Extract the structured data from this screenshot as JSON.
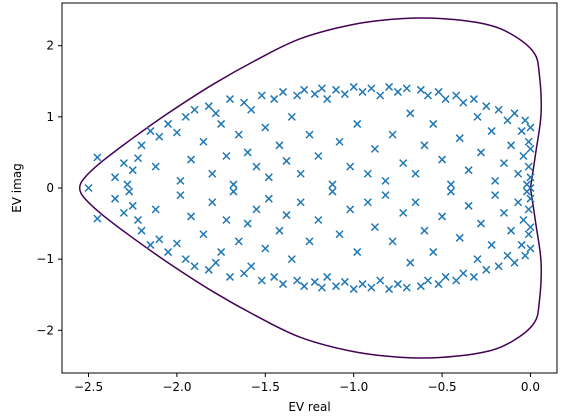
{
  "chart_data": {
    "type": "scatter",
    "title": "",
    "xlabel": "EV real",
    "ylabel": "EV imag",
    "xlim": [
      -2.65,
      0.15
    ],
    "ylim": [
      -2.6,
      2.6
    ],
    "xticks": [
      -2.5,
      -2.0,
      -1.5,
      -1.0,
      -0.5,
      0.0
    ],
    "xtick_labels": [
      "−2.5",
      "−2.0",
      "−1.5",
      "−1.0",
      "−0.5",
      "0.0"
    ],
    "yticks": [
      -2,
      -1,
      0,
      1,
      2
    ],
    "ytick_labels": [
      "−2",
      "−1",
      "0",
      "1",
      "2"
    ],
    "grid": false,
    "legend": null,
    "colors": {
      "markers": "#1f77b4",
      "contour": "#440154"
    },
    "contour": {
      "x": [
        0.0,
        0.03,
        0.06,
        0.05,
        0.02,
        -0.1,
        -0.25,
        -0.5,
        -0.73,
        -1.0,
        -1.3,
        -1.55,
        -1.8,
        -2.05,
        -2.25,
        -2.42,
        -2.52,
        -2.55,
        -2.52,
        -2.42,
        -2.25,
        -2.05,
        -1.8,
        -1.55,
        -1.3,
        -1.0,
        -0.73,
        -0.5,
        -0.25,
        -0.1,
        0.02,
        0.05,
        0.06,
        0.03,
        0.0
      ],
      "y": [
        0.0,
        0.5,
        1.05,
        1.6,
        1.9,
        2.15,
        2.3,
        2.38,
        2.38,
        2.3,
        2.1,
        1.8,
        1.45,
        1.05,
        0.7,
        0.38,
        0.15,
        0.0,
        -0.15,
        -0.38,
        -0.7,
        -1.05,
        -1.45,
        -1.8,
        -2.1,
        -2.3,
        -2.38,
        -2.38,
        -2.3,
        -2.15,
        -1.9,
        -1.6,
        -1.05,
        -0.5,
        0.0
      ]
    },
    "points": [
      [
        -2.5,
        0.0
      ],
      [
        -2.45,
        0.43
      ],
      [
        -2.45,
        -0.43
      ],
      [
        -2.35,
        0.15
      ],
      [
        -2.35,
        -0.15
      ],
      [
        -2.3,
        0.35
      ],
      [
        -2.3,
        -0.35
      ],
      [
        -2.28,
        0.05
      ],
      [
        -2.27,
        -0.05
      ],
      [
        -2.25,
        0.25
      ],
      [
        -2.25,
        -0.25
      ],
      [
        -2.22,
        0.42
      ],
      [
        -2.22,
        -0.45
      ],
      [
        -2.2,
        0.6
      ],
      [
        -2.2,
        -0.6
      ],
      [
        -2.15,
        0.8
      ],
      [
        -2.15,
        -0.8
      ],
      [
        -2.12,
        0.3
      ],
      [
        -2.12,
        -0.3
      ],
      [
        -2.1,
        0.72
      ],
      [
        -2.1,
        -0.72
      ],
      [
        -2.05,
        0.9
      ],
      [
        -2.05,
        -0.9
      ],
      [
        -2.0,
        0.78
      ],
      [
        -2.0,
        -0.78
      ],
      [
        -1.98,
        0.1
      ],
      [
        -1.98,
        -0.1
      ],
      [
        -1.95,
        1.0
      ],
      [
        -1.95,
        -1.0
      ],
      [
        -1.92,
        0.4
      ],
      [
        -1.92,
        -0.4
      ],
      [
        -1.9,
        1.1
      ],
      [
        -1.9,
        -1.1
      ],
      [
        -1.85,
        0.65
      ],
      [
        -1.85,
        -0.65
      ],
      [
        -1.82,
        1.15
      ],
      [
        -1.82,
        -1.15
      ],
      [
        -1.8,
        0.2
      ],
      [
        -1.8,
        -0.2
      ],
      [
        -1.78,
        1.05
      ],
      [
        -1.78,
        -1.05
      ],
      [
        -1.75,
        0.9
      ],
      [
        -1.75,
        -0.9
      ],
      [
        -1.72,
        0.45
      ],
      [
        -1.72,
        -0.45
      ],
      [
        -1.7,
        1.25
      ],
      [
        -1.7,
        -1.25
      ],
      [
        -1.68,
        0.05
      ],
      [
        -1.68,
        -0.05
      ],
      [
        -1.65,
        0.75
      ],
      [
        -1.65,
        -0.75
      ],
      [
        -1.62,
        1.2
      ],
      [
        -1.62,
        -1.2
      ],
      [
        -1.6,
        0.5
      ],
      [
        -1.6,
        -0.5
      ],
      [
        -1.58,
        1.1
      ],
      [
        -1.58,
        -1.1
      ],
      [
        -1.55,
        0.3
      ],
      [
        -1.55,
        -0.3
      ],
      [
        -1.52,
        1.3
      ],
      [
        -1.52,
        -1.3
      ],
      [
        -1.5,
        0.85
      ],
      [
        -1.5,
        -0.85
      ],
      [
        -1.48,
        0.15
      ],
      [
        -1.48,
        -0.15
      ],
      [
        -1.45,
        1.25
      ],
      [
        -1.45,
        -1.25
      ],
      [
        -1.42,
        0.6
      ],
      [
        -1.42,
        -0.6
      ],
      [
        -1.4,
        1.35
      ],
      [
        -1.4,
        -1.35
      ],
      [
        -1.38,
        0.38
      ],
      [
        -1.38,
        -0.38
      ],
      [
        -1.35,
        1.0
      ],
      [
        -1.35,
        -1.0
      ],
      [
        -1.32,
        1.3
      ],
      [
        -1.32,
        -1.3
      ],
      [
        -1.3,
        0.2
      ],
      [
        -1.3,
        -0.2
      ],
      [
        -1.28,
        1.38
      ],
      [
        -1.28,
        -1.38
      ],
      [
        -1.25,
        0.75
      ],
      [
        -1.25,
        -0.75
      ],
      [
        -1.22,
        1.32
      ],
      [
        -1.22,
        -1.32
      ],
      [
        -1.2,
        0.45
      ],
      [
        -1.2,
        -0.45
      ],
      [
        -1.18,
        1.4
      ],
      [
        -1.18,
        -1.4
      ],
      [
        -1.15,
        1.25
      ],
      [
        -1.15,
        -1.25
      ],
      [
        -1.12,
        0.05
      ],
      [
        -1.12,
        -0.05
      ],
      [
        -1.1,
        1.38
      ],
      [
        -1.1,
        -1.38
      ],
      [
        -1.08,
        0.65
      ],
      [
        -1.08,
        -0.65
      ],
      [
        -1.05,
        1.32
      ],
      [
        -1.05,
        -1.32
      ],
      [
        -1.02,
        0.3
      ],
      [
        -1.02,
        -0.3
      ],
      [
        -1.0,
        1.42
      ],
      [
        -1.0,
        -1.42
      ],
      [
        -0.98,
        0.9
      ],
      [
        -0.98,
        -0.9
      ],
      [
        -0.95,
        1.35
      ],
      [
        -0.95,
        -1.35
      ],
      [
        -0.92,
        0.2
      ],
      [
        -0.92,
        -0.2
      ],
      [
        -0.9,
        1.4
      ],
      [
        -0.9,
        -1.4
      ],
      [
        -0.88,
        0.55
      ],
      [
        -0.88,
        -0.55
      ],
      [
        -0.85,
        1.3
      ],
      [
        -0.85,
        -1.3
      ],
      [
        -0.82,
        0.1
      ],
      [
        -0.82,
        -0.1
      ],
      [
        -0.8,
        1.42
      ],
      [
        -0.8,
        -1.42
      ],
      [
        -0.78,
        0.75
      ],
      [
        -0.78,
        -0.75
      ],
      [
        -0.75,
        1.35
      ],
      [
        -0.75,
        -1.35
      ],
      [
        -0.72,
        0.35
      ],
      [
        -0.72,
        -0.35
      ],
      [
        -0.7,
        1.4
      ],
      [
        -0.7,
        -1.4
      ],
      [
        -0.68,
        1.05
      ],
      [
        -0.68,
        -1.05
      ],
      [
        -0.65,
        0.2
      ],
      [
        -0.65,
        -0.2
      ],
      [
        -0.62,
        1.38
      ],
      [
        -0.62,
        -1.38
      ],
      [
        -0.6,
        0.6
      ],
      [
        -0.6,
        -0.6
      ],
      [
        -0.58,
        1.3
      ],
      [
        -0.58,
        -1.3
      ],
      [
        -0.55,
        0.9
      ],
      [
        -0.55,
        -0.9
      ],
      [
        -0.52,
        1.35
      ],
      [
        -0.52,
        -1.35
      ],
      [
        -0.5,
        0.4
      ],
      [
        -0.5,
        -0.4
      ],
      [
        -0.48,
        1.25
      ],
      [
        -0.48,
        -1.25
      ],
      [
        -0.45,
        0.05
      ],
      [
        -0.45,
        -0.05
      ],
      [
        -0.42,
        1.3
      ],
      [
        -0.42,
        -1.3
      ],
      [
        -0.4,
        0.7
      ],
      [
        -0.4,
        -0.7
      ],
      [
        -0.38,
        1.2
      ],
      [
        -0.38,
        -1.2
      ],
      [
        -0.35,
        0.25
      ],
      [
        -0.35,
        -0.25
      ],
      [
        -0.32,
        1.25
      ],
      [
        -0.32,
        -1.25
      ],
      [
        -0.3,
        1.0
      ],
      [
        -0.3,
        -1.0
      ],
      [
        -0.28,
        0.5
      ],
      [
        -0.28,
        -0.5
      ],
      [
        -0.25,
        1.15
      ],
      [
        -0.25,
        -1.15
      ],
      [
        -0.22,
        0.8
      ],
      [
        -0.22,
        -0.8
      ],
      [
        -0.2,
        0.1
      ],
      [
        -0.2,
        -0.1
      ],
      [
        -0.18,
        1.1
      ],
      [
        -0.18,
        -1.1
      ],
      [
        -0.15,
        0.35
      ],
      [
        -0.15,
        -0.35
      ],
      [
        -0.13,
        0.95
      ],
      [
        -0.13,
        -0.95
      ],
      [
        -0.11,
        0.6
      ],
      [
        -0.11,
        -0.6
      ],
      [
        -0.09,
        1.05
      ],
      [
        -0.09,
        -1.05
      ],
      [
        -0.07,
        0.2
      ],
      [
        -0.07,
        -0.2
      ],
      [
        -0.05,
        0.8
      ],
      [
        -0.05,
        -0.8
      ],
      [
        -0.04,
        0.45
      ],
      [
        -0.04,
        -0.45
      ],
      [
        -0.03,
        0.95
      ],
      [
        -0.03,
        -0.95
      ],
      [
        -0.02,
        0.05
      ],
      [
        -0.02,
        -0.05
      ],
      [
        -0.01,
        0.65
      ],
      [
        -0.01,
        -0.65
      ],
      [
        -0.01,
        0.3
      ],
      [
        -0.01,
        -0.3
      ],
      [
        0.0,
        0.85
      ],
      [
        0.0,
        -0.85
      ],
      [
        0.0,
        0.15
      ],
      [
        0.0,
        -0.15
      ],
      [
        0.0,
        0.55
      ],
      [
        0.0,
        -0.55
      ],
      [
        0.0,
        0.0
      ]
    ]
  }
}
